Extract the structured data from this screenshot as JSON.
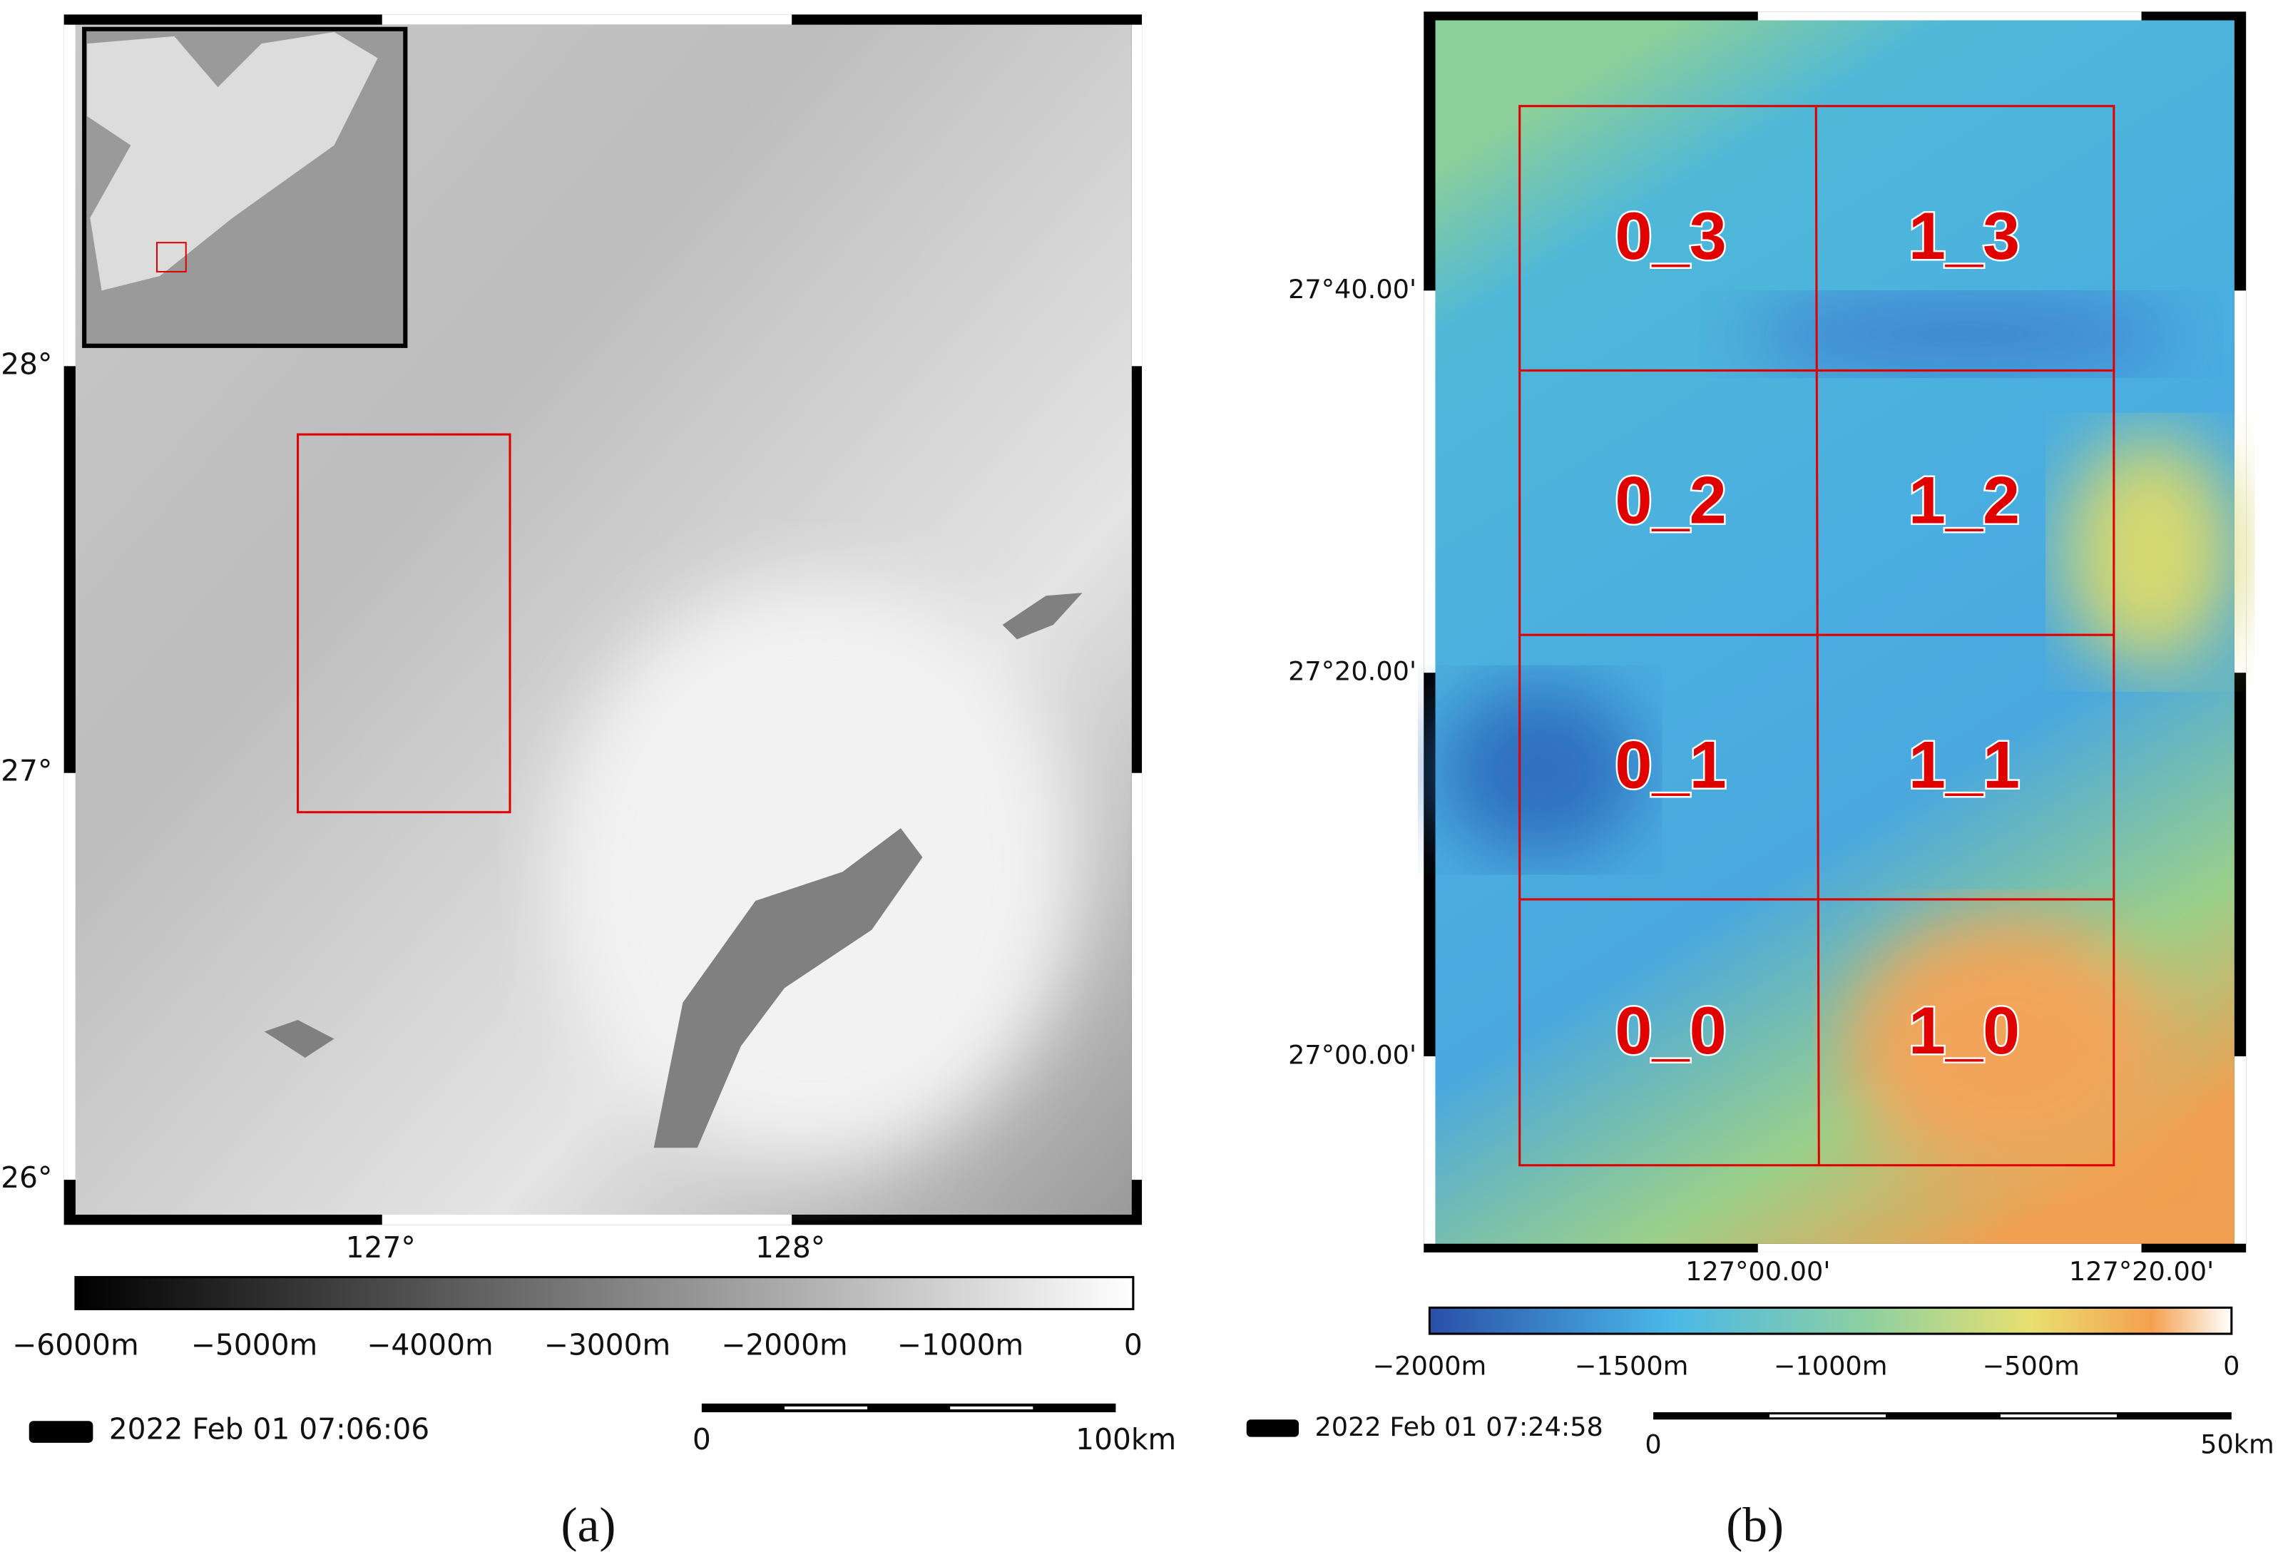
{
  "panel_a": {
    "lat_labels": [
      "28°",
      "27°",
      "26°"
    ],
    "lon_labels": [
      "127°",
      "128°"
    ],
    "colorbar_labels": [
      "−6000m",
      "−5000m",
      "−4000m",
      "−3000m",
      "−2000m",
      "−1000m",
      "0"
    ],
    "timestamp": "2022 Feb 01 07:06:06",
    "scale_labels": [
      "0",
      "100km"
    ],
    "caption": "(a)"
  },
  "panel_b": {
    "lat_labels": [
      "27°40.00'",
      "27°20.00'",
      "27°00.00'"
    ],
    "lon_labels": [
      "127°00.00'",
      "127°20.00'"
    ],
    "cell_labels": [
      "0_3",
      "1_3",
      "0_2",
      "1_2",
      "0_1",
      "1_1",
      "0_0",
      "1_0"
    ],
    "colorbar_labels": [
      "−2000m",
      "−1500m",
      "−1000m",
      "−500m",
      "0"
    ],
    "timestamp": "2022 Feb 01 07:24:58",
    "scale_labels": [
      "0",
      "50km"
    ],
    "caption": "(b)"
  }
}
